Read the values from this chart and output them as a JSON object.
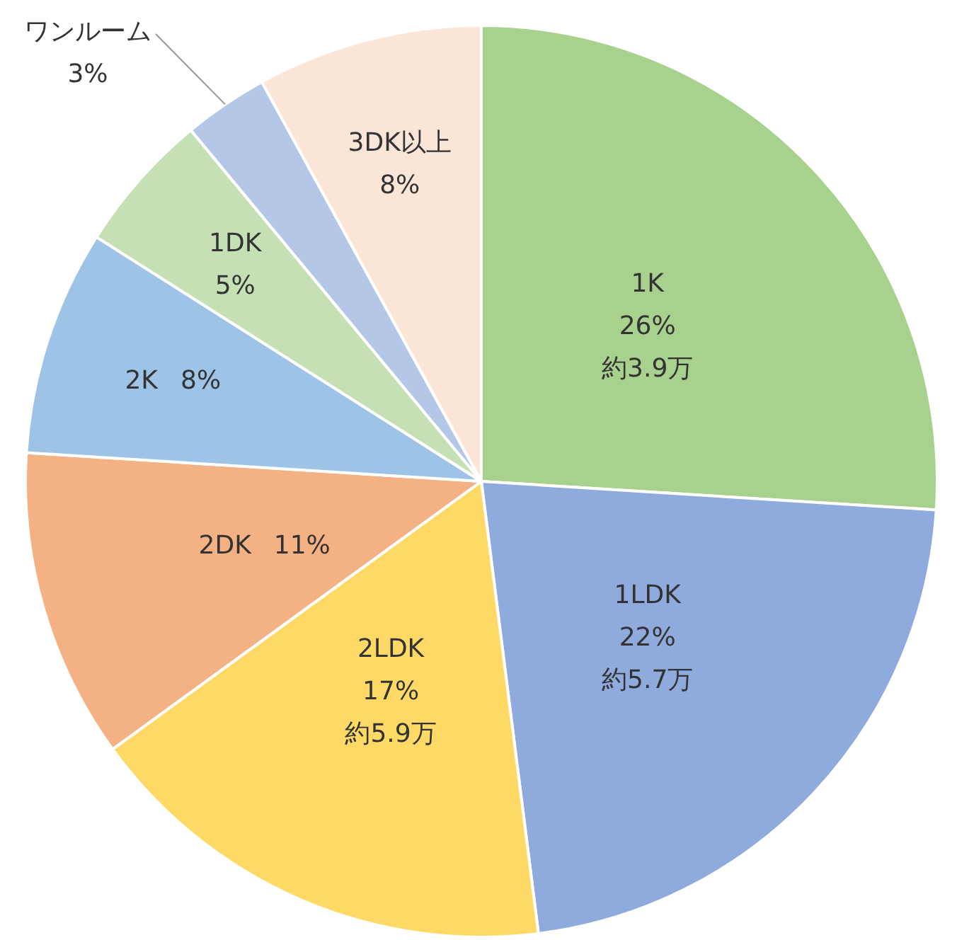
{
  "chart_data": {
    "type": "pie",
    "categories": [
      "1K",
      "1LDK",
      "2LDK",
      "2DK",
      "2K",
      "1DK",
      "ワンルーム",
      "3DK以上"
    ],
    "values": [
      26,
      22,
      17,
      11,
      8,
      5,
      3,
      8
    ],
    "colors": [
      "#a9d18e",
      "#8faadc",
      "#ffd966",
      "#f4b183",
      "#9dc3e6",
      "#c5e0b4",
      "#b4c7e7",
      "#fbe5d6"
    ],
    "value_labels": [
      "26%",
      "22%",
      "17%",
      "11%",
      "8%",
      "5%",
      "3%",
      "8%"
    ],
    "annotations": [
      {
        "text": "約3.9万",
        "x": "1K"
      },
      {
        "text": "約5.7万",
        "x": "1LDK"
      },
      {
        "text": "約5.9万",
        "x": "2LDK"
      }
    ]
  }
}
